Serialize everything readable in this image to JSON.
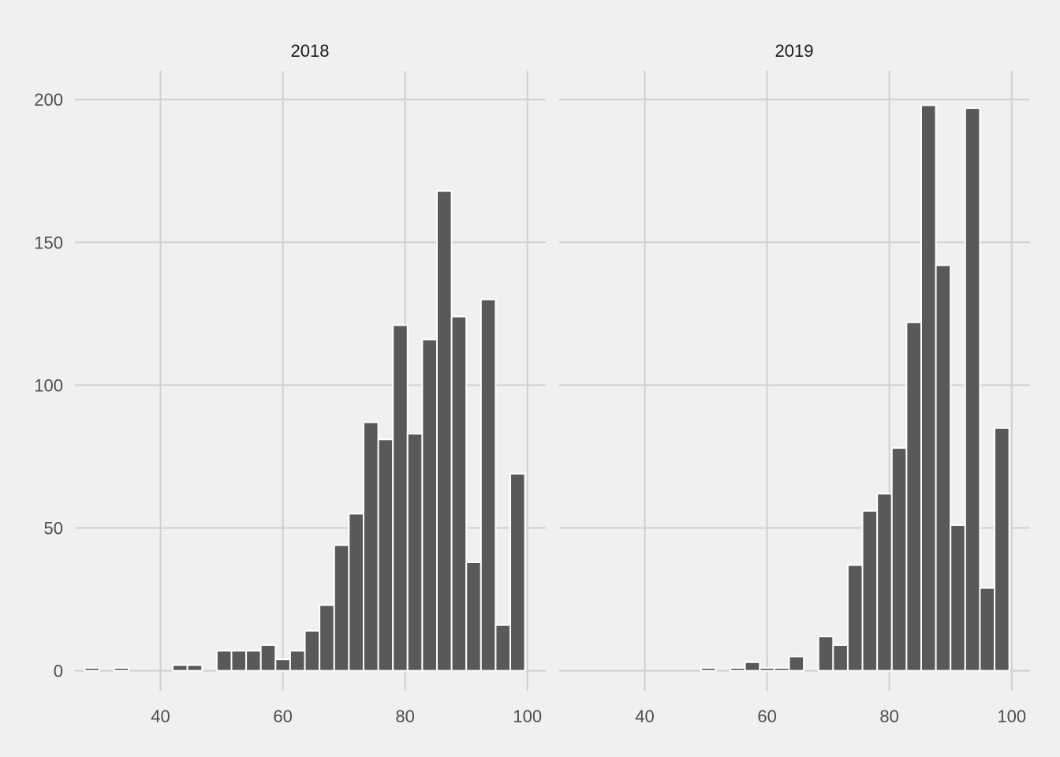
{
  "chart_data": {
    "type": "bar",
    "subtype": "faceted-histogram",
    "background": "#f0f0f0",
    "bar_color": "#595959",
    "bar_outline": "#ffffff",
    "grid_color": "#d2d2d2",
    "grid": true,
    "xlim": [
      26,
      103
    ],
    "ylim": [
      -7,
      210
    ],
    "x_ticks": [
      40,
      60,
      80,
      100
    ],
    "y_ticks": [
      0,
      50,
      100,
      150,
      200
    ],
    "bin_width": 2.4,
    "bin_start": 27.6,
    "panels": [
      {
        "title": "2018",
        "counts": [
          1,
          0,
          1,
          0,
          0,
          0,
          2,
          2,
          0,
          7,
          7,
          7,
          9,
          4,
          7,
          14,
          23,
          44,
          55,
          87,
          81,
          121,
          83,
          116,
          168,
          124,
          38,
          130,
          16,
          69
        ]
      },
      {
        "title": "2019",
        "counts": [
          0,
          0,
          0,
          0,
          0,
          0,
          0,
          0,
          0,
          1,
          0,
          1,
          3,
          1,
          1,
          5,
          0,
          12,
          9,
          37,
          56,
          62,
          78,
          122,
          198,
          142,
          51,
          197,
          29,
          85
        ]
      }
    ]
  }
}
